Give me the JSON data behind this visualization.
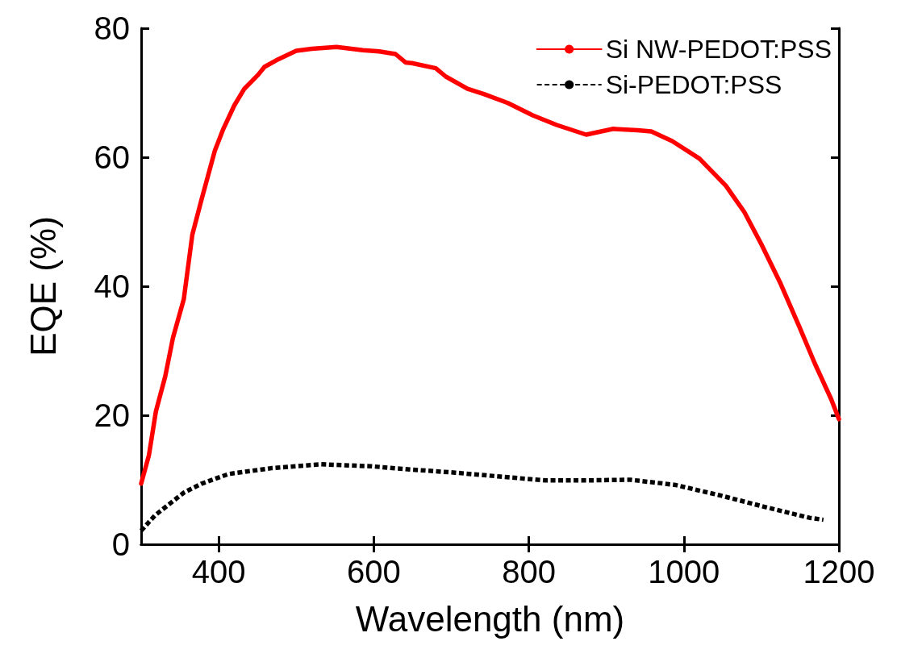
{
  "chart_data": {
    "type": "line",
    "xlabel": "Wavelength (nm)",
    "ylabel": "EQE (%)",
    "xlim": [
      300,
      1200
    ],
    "ylim": [
      0,
      80
    ],
    "xticks": [
      400,
      600,
      800,
      1000,
      1200
    ],
    "yticks": [
      0,
      20,
      40,
      60,
      80
    ],
    "grid": false,
    "legend": "top right",
    "marker": "none",
    "series": [
      {
        "name": "Si NW-PEDOT:PSS",
        "color": "#ff0000",
        "line_style": "solid",
        "x": [
          300,
          310,
          319,
          331,
          341,
          355,
          366,
          378,
          395,
          406,
          420,
          433,
          451,
          459,
          477,
          500,
          520,
          552,
          586,
          607,
          628,
          641,
          649,
          680,
          693,
          721,
          742,
          773,
          805,
          836,
          874,
          909,
          940,
          958,
          985,
          1020,
          1054,
          1078,
          1100,
          1124,
          1149,
          1169,
          1190,
          1200
        ],
        "values": [
          9.4,
          13.8,
          20.6,
          26,
          32,
          38,
          48,
          53.5,
          61,
          64.4,
          68,
          70.6,
          72.8,
          74,
          75.2,
          76.5,
          76.8,
          77.1,
          76.6,
          76.4,
          76,
          74.7,
          74.6,
          73.8,
          72.5,
          70.6,
          69.8,
          68.4,
          66.5,
          65,
          63.5,
          64.4,
          64.2,
          64,
          62.5,
          59.8,
          55.6,
          51.5,
          46.5,
          40.6,
          33.7,
          28,
          22.5,
          19.4
        ]
      },
      {
        "name": "Si-PEDOT:PSS",
        "color": "#000000",
        "line_style": "dashed",
        "x": [
          300,
          318,
          355,
          378,
          413,
          468,
          532,
          596,
          647,
          705,
          763,
          821,
          872,
          931,
          989,
          1046,
          1104,
          1162,
          1180
        ],
        "values": [
          2.1,
          4.5,
          8,
          9.4,
          10.9,
          11.8,
          12.4,
          12.1,
          11.6,
          11.1,
          10.5,
          9.9,
          9.9,
          10,
          9.2,
          7.6,
          5.8,
          4.1,
          3.8
        ]
      }
    ]
  }
}
